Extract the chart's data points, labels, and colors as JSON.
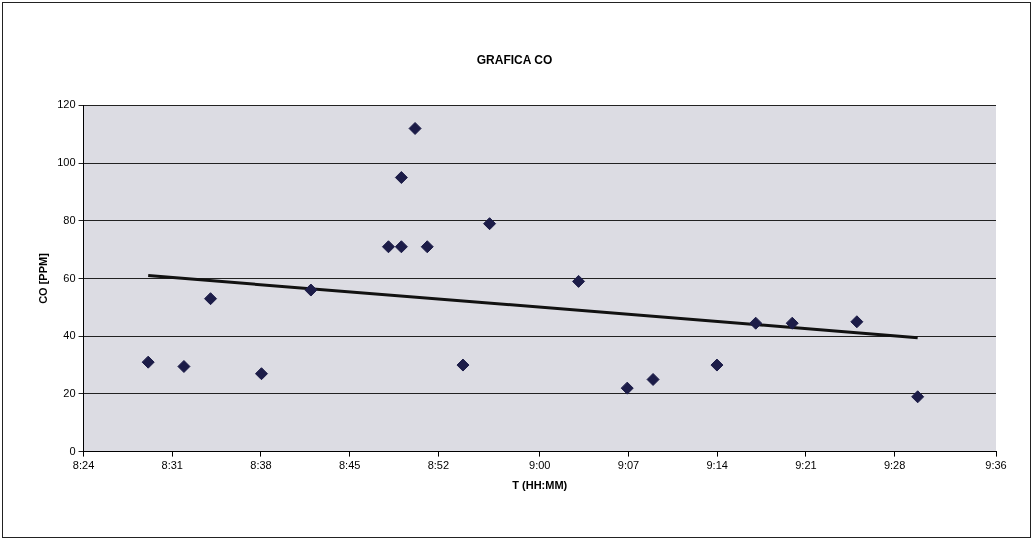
{
  "chart_data": {
    "type": "scatter",
    "title": "GRAFICA CO",
    "xlabel": "T (HH:MM)",
    "ylabel": "CO [PPM]",
    "xlim": [
      8.4,
      9.6
    ],
    "xticks": [
      {
        "value": 8.4,
        "label": "8:24"
      },
      {
        "value": 8.516667,
        "label": "8:31"
      },
      {
        "value": 8.633333,
        "label": "8:38"
      },
      {
        "value": 8.75,
        "label": "8:45"
      },
      {
        "value": 8.866667,
        "label": "8:52"
      },
      {
        "value": 9.0,
        "label": "9:00"
      },
      {
        "value": 9.116667,
        "label": "9:07"
      },
      {
        "value": 9.233333,
        "label": "9:14"
      },
      {
        "value": 9.35,
        "label": "9:21"
      },
      {
        "value": 9.466667,
        "label": "9:28"
      },
      {
        "value": 9.6,
        "label": "9:36"
      }
    ],
    "ylim": [
      0,
      120
    ],
    "yticks": [
      0,
      20,
      40,
      60,
      80,
      100,
      120
    ],
    "grid": "y",
    "legend": false,
    "marker": "diamond",
    "series": [
      {
        "color": "#1c1c48",
        "x": [
          8.485,
          8.532,
          8.567,
          8.634,
          8.699,
          8.801,
          8.818,
          8.818,
          8.836,
          8.852,
          8.899,
          8.934,
          9.051,
          9.115,
          9.149,
          9.233,
          9.284,
          9.332,
          9.417,
          9.497
        ],
        "values": [
          31,
          29.5,
          53,
          27,
          56,
          71,
          95,
          71,
          112,
          71,
          30,
          79,
          59,
          22,
          25,
          30,
          44.5,
          44.5,
          45,
          19
        ]
      },
      {
        "type": "line",
        "color": "#111111",
        "line_style": "solid",
        "marker": "none",
        "x": [
          8.485,
          9.497
        ],
        "values": [
          61,
          39.5
        ]
      }
    ]
  }
}
